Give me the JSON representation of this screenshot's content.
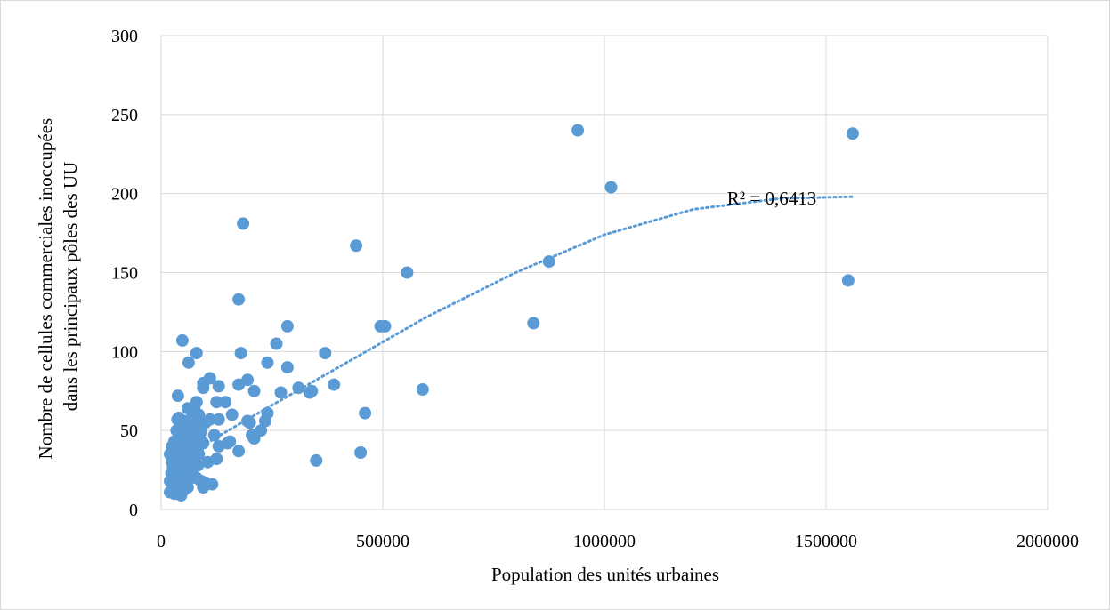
{
  "chart_data": {
    "type": "scatter",
    "title": "",
    "xlabel": "Population des unités urbaines",
    "ylabel": "Nombre de cellules commerciales inoccupées dans les principaux pôles des UU",
    "xlim": [
      0,
      2000000
    ],
    "ylim": [
      0,
      300
    ],
    "x_ticks": [
      "0",
      "500000",
      "1000000",
      "1500000",
      "2000000"
    ],
    "y_ticks": [
      "0",
      "50",
      "100",
      "150",
      "200",
      "250",
      "300"
    ],
    "x_tick_values": [
      0,
      500000,
      1000000,
      1500000,
      2000000
    ],
    "y_tick_values": [
      0,
      50,
      100,
      150,
      200,
      250,
      300
    ],
    "grid": true,
    "legend": "none",
    "marker_color": "#5b9bd5",
    "trendline": {
      "type": "polynomial",
      "style": "dotted",
      "color": "#5b9bd5",
      "label": "R² = 0,6413",
      "points": [
        [
          30000,
          30
        ],
        [
          200000,
          58
        ],
        [
          400000,
          90
        ],
        [
          600000,
          122
        ],
        [
          800000,
          150
        ],
        [
          1000000,
          174
        ],
        [
          1200000,
          190
        ],
        [
          1400000,
          197
        ],
        [
          1560000,
          198
        ]
      ]
    },
    "points": [
      [
        940000,
        240
      ],
      [
        1560000,
        238
      ],
      [
        1015000,
        204
      ],
      [
        185000,
        181
      ],
      [
        440000,
        167
      ],
      [
        555000,
        150
      ],
      [
        875000,
        157
      ],
      [
        1550000,
        145
      ],
      [
        175000,
        133
      ],
      [
        840000,
        118
      ],
      [
        285000,
        116
      ],
      [
        495000,
        116
      ],
      [
        505000,
        116
      ],
      [
        48000,
        107
      ],
      [
        260000,
        105
      ],
      [
        80000,
        99
      ],
      [
        180000,
        99
      ],
      [
        370000,
        99
      ],
      [
        62000,
        93
      ],
      [
        240000,
        93
      ],
      [
        285000,
        90
      ],
      [
        110000,
        83
      ],
      [
        195000,
        82
      ],
      [
        95000,
        80
      ],
      [
        390000,
        79
      ],
      [
        175000,
        79
      ],
      [
        130000,
        78
      ],
      [
        95000,
        77
      ],
      [
        310000,
        77
      ],
      [
        340000,
        75
      ],
      [
        210000,
        75
      ],
      [
        270000,
        74
      ],
      [
        335000,
        74
      ],
      [
        590000,
        76
      ],
      [
        38000,
        72
      ],
      [
        125000,
        68
      ],
      [
        145000,
        68
      ],
      [
        80000,
        68
      ],
      [
        460000,
        61
      ],
      [
        240000,
        61
      ],
      [
        160000,
        60
      ],
      [
        195000,
        56
      ],
      [
        235000,
        56
      ],
      [
        130000,
        57
      ],
      [
        200000,
        55
      ],
      [
        110000,
        57
      ],
      [
        85000,
        60
      ],
      [
        70000,
        63
      ],
      [
        60000,
        64
      ],
      [
        75000,
        65
      ],
      [
        40000,
        58
      ],
      [
        52000,
        56
      ],
      [
        65000,
        55
      ],
      [
        55000,
        52
      ],
      [
        70000,
        52
      ],
      [
        90000,
        50
      ],
      [
        225000,
        50
      ],
      [
        205000,
        47
      ],
      [
        210000,
        45
      ],
      [
        120000,
        47
      ],
      [
        150000,
        42
      ],
      [
        155000,
        43
      ],
      [
        95000,
        42
      ],
      [
        80000,
        44
      ],
      [
        60000,
        45
      ],
      [
        45000,
        47
      ],
      [
        35000,
        50
      ],
      [
        30000,
        43
      ],
      [
        25000,
        40
      ],
      [
        50000,
        40
      ],
      [
        65000,
        40
      ],
      [
        75000,
        41
      ],
      [
        130000,
        40
      ],
      [
        175000,
        37
      ],
      [
        45000,
        37
      ],
      [
        55000,
        36
      ],
      [
        70000,
        35
      ],
      [
        85000,
        35
      ],
      [
        20000,
        35
      ],
      [
        40000,
        33
      ],
      [
        60000,
        32
      ],
      [
        125000,
        32
      ],
      [
        105000,
        30
      ],
      [
        350000,
        31
      ],
      [
        450000,
        36
      ],
      [
        25000,
        30
      ],
      [
        35000,
        28
      ],
      [
        50000,
        28
      ],
      [
        65000,
        27
      ],
      [
        45000,
        25
      ],
      [
        30000,
        25
      ],
      [
        60000,
        23
      ],
      [
        70000,
        22
      ],
      [
        80000,
        20
      ],
      [
        40000,
        22
      ],
      [
        25000,
        20
      ],
      [
        35000,
        19
      ],
      [
        55000,
        18
      ],
      [
        90000,
        18
      ],
      [
        100000,
        17
      ],
      [
        115000,
        16
      ],
      [
        20000,
        18
      ],
      [
        30000,
        16
      ],
      [
        45000,
        15
      ],
      [
        60000,
        14
      ],
      [
        95000,
        14
      ],
      [
        25000,
        12
      ],
      [
        40000,
        11
      ],
      [
        50000,
        12
      ],
      [
        20000,
        11
      ],
      [
        30000,
        10
      ],
      [
        45000,
        9
      ],
      [
        35000,
        14
      ],
      [
        55000,
        25
      ],
      [
        75000,
        30
      ],
      [
        42000,
        32
      ],
      [
        58000,
        38
      ],
      [
        68000,
        46
      ],
      [
        48000,
        52
      ],
      [
        38000,
        45
      ],
      [
        52000,
        33
      ],
      [
        62000,
        29
      ],
      [
        28000,
        37
      ],
      [
        33000,
        21
      ],
      [
        47000,
        19
      ],
      [
        57000,
        16
      ],
      [
        66000,
        20
      ],
      [
        72000,
        26
      ],
      [
        82000,
        38
      ],
      [
        88000,
        48
      ],
      [
        100000,
        55
      ],
      [
        37000,
        57
      ],
      [
        43000,
        41
      ],
      [
        53000,
        44
      ],
      [
        63000,
        50
      ],
      [
        78000,
        56
      ],
      [
        30000,
        32
      ],
      [
        27000,
        27
      ],
      [
        23000,
        23
      ],
      [
        39000,
        26
      ],
      [
        49000,
        30
      ],
      [
        59000,
        42
      ],
      [
        69000,
        58
      ],
      [
        73000,
        48
      ],
      [
        83000,
        28
      ]
    ]
  }
}
